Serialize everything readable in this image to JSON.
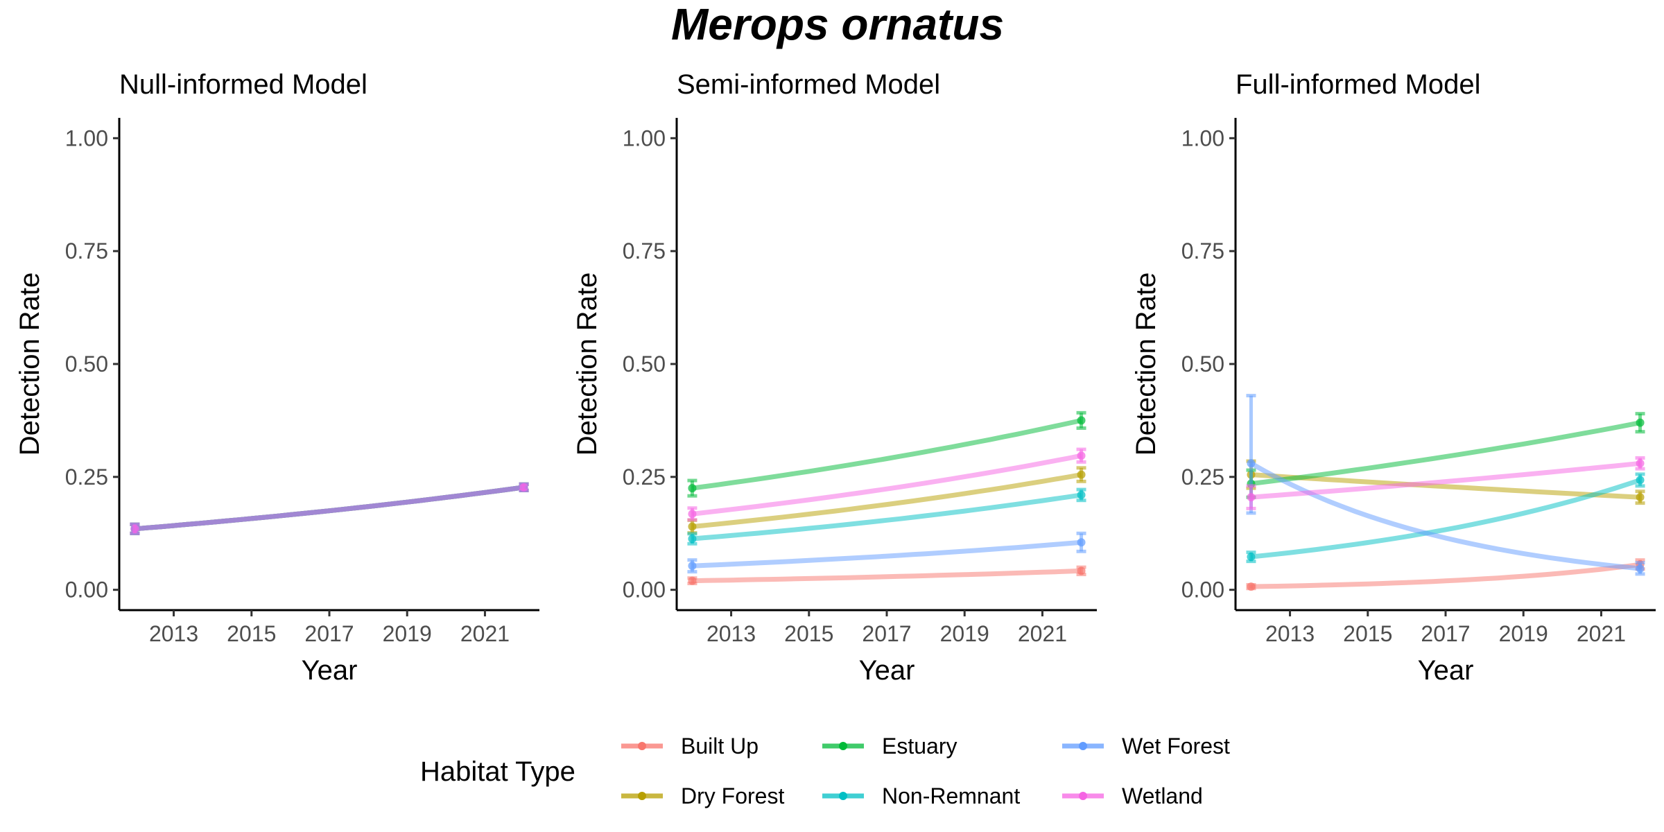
{
  "title": "Merops ornatus",
  "legend": {
    "title": "Habitat Type",
    "placement": "bottom",
    "items": [
      {
        "name": "Built Up",
        "color": "#F8766D"
      },
      {
        "name": "Dry Forest",
        "color": "#B79F00"
      },
      {
        "name": "Estuary",
        "color": "#00BA38"
      },
      {
        "name": "Non-Remnant",
        "color": "#00BFC4"
      },
      {
        "name": "Wet Forest",
        "color": "#619CFF"
      },
      {
        "name": "Wetland",
        "color": "#F564E3"
      }
    ]
  },
  "chart_data": [
    {
      "type": "line",
      "title": "Null-informed Model",
      "xlabel": "Year",
      "ylabel": "Detection Rate",
      "xlim": [
        2011.6,
        2022.4
      ],
      "ylim": [
        -0.045,
        1.045
      ],
      "xticks": [
        "2013",
        "2015",
        "2017",
        "2019",
        "2021"
      ],
      "yticks": [
        "0.00",
        "0.25",
        "0.50",
        "0.75",
        "1.00"
      ],
      "grid": false,
      "series": [
        {
          "name": "Built Up",
          "color": "#F8766D",
          "start": 0.135,
          "end": 0.227,
          "start_err": [
            0.125,
            0.145
          ],
          "end_err": [
            0.22,
            0.234
          ]
        },
        {
          "name": "Dry Forest",
          "color": "#B79F00",
          "start": 0.135,
          "end": 0.227,
          "start_err": [
            0.125,
            0.145
          ],
          "end_err": [
            0.22,
            0.234
          ]
        },
        {
          "name": "Estuary",
          "color": "#00BA38",
          "start": 0.135,
          "end": 0.227,
          "start_err": [
            0.125,
            0.145
          ],
          "end_err": [
            0.22,
            0.234
          ]
        },
        {
          "name": "Non-Remnant",
          "color": "#00BFC4",
          "start": 0.135,
          "end": 0.227,
          "start_err": [
            0.125,
            0.145
          ],
          "end_err": [
            0.22,
            0.234
          ]
        },
        {
          "name": "Wet Forest",
          "color": "#619CFF",
          "start": 0.135,
          "end": 0.227,
          "start_err": [
            0.125,
            0.145
          ],
          "end_err": [
            0.22,
            0.234
          ]
        },
        {
          "name": "Wetland",
          "color": "#F564E3",
          "start": 0.135,
          "end": 0.227,
          "start_err": [
            0.125,
            0.145
          ],
          "end_err": [
            0.22,
            0.234
          ]
        }
      ]
    },
    {
      "type": "line",
      "title": "Semi-informed Model",
      "xlabel": "Year",
      "ylabel": "Detection Rate",
      "xlim": [
        2011.6,
        2022.4
      ],
      "ylim": [
        -0.045,
        1.045
      ],
      "xticks": [
        "2013",
        "2015",
        "2017",
        "2019",
        "2021"
      ],
      "yticks": [
        "0.00",
        "0.25",
        "0.50",
        "0.75",
        "1.00"
      ],
      "grid": false,
      "series": [
        {
          "name": "Built Up",
          "color": "#F8766D",
          "start": 0.02,
          "end": 0.042,
          "start_err": [
            0.014,
            0.026
          ],
          "end_err": [
            0.034,
            0.05
          ]
        },
        {
          "name": "Dry Forest",
          "color": "#B79F00",
          "start": 0.14,
          "end": 0.255,
          "start_err": [
            0.126,
            0.154
          ],
          "end_err": [
            0.24,
            0.27
          ]
        },
        {
          "name": "Estuary",
          "color": "#00BA38",
          "start": 0.225,
          "end": 0.375,
          "start_err": [
            0.208,
            0.242
          ],
          "end_err": [
            0.358,
            0.392
          ]
        },
        {
          "name": "Non-Remnant",
          "color": "#00BFC4",
          "start": 0.113,
          "end": 0.21,
          "start_err": [
            0.102,
            0.124
          ],
          "end_err": [
            0.198,
            0.222
          ]
        },
        {
          "name": "Wet Forest",
          "color": "#619CFF",
          "start": 0.053,
          "end": 0.105,
          "start_err": [
            0.04,
            0.066
          ],
          "end_err": [
            0.085,
            0.125
          ]
        },
        {
          "name": "Wetland",
          "color": "#F564E3",
          "start": 0.168,
          "end": 0.297,
          "start_err": [
            0.155,
            0.181
          ],
          "end_err": [
            0.283,
            0.311
          ]
        }
      ]
    },
    {
      "type": "line",
      "title": "Full-informed Model",
      "xlabel": "Year",
      "ylabel": "Detection Rate",
      "xlim": [
        2011.6,
        2022.4
      ],
      "ylim": [
        -0.045,
        1.045
      ],
      "xticks": [
        "2013",
        "2015",
        "2017",
        "2019",
        "2021"
      ],
      "yticks": [
        "0.00",
        "0.25",
        "0.50",
        "0.75",
        "1.00"
      ],
      "grid": false,
      "series": [
        {
          "name": "Built Up",
          "color": "#F8766D",
          "start": 0.007,
          "end": 0.056,
          "start_err": [
            0.003,
            0.011
          ],
          "end_err": [
            0.046,
            0.066
          ]
        },
        {
          "name": "Dry Forest",
          "color": "#B79F00",
          "start": 0.255,
          "end": 0.205,
          "start_err": [
            0.225,
            0.285
          ],
          "end_err": [
            0.192,
            0.218
          ]
        },
        {
          "name": "Estuary",
          "color": "#00BA38",
          "start": 0.235,
          "end": 0.37,
          "start_err": [
            0.205,
            0.265
          ],
          "end_err": [
            0.35,
            0.39
          ]
        },
        {
          "name": "Non-Remnant",
          "color": "#00BFC4",
          "start": 0.073,
          "end": 0.243,
          "start_err": [
            0.063,
            0.083
          ],
          "end_err": [
            0.23,
            0.256
          ]
        },
        {
          "name": "Wet Forest",
          "color": "#619CFF",
          "start": 0.28,
          "end": 0.047,
          "start_err": [
            0.17,
            0.43
          ],
          "end_err": [
            0.035,
            0.06
          ]
        },
        {
          "name": "Wetland",
          "color": "#F564E3",
          "start": 0.205,
          "end": 0.28,
          "start_err": [
            0.18,
            0.23
          ],
          "end_err": [
            0.268,
            0.292
          ]
        }
      ]
    }
  ]
}
